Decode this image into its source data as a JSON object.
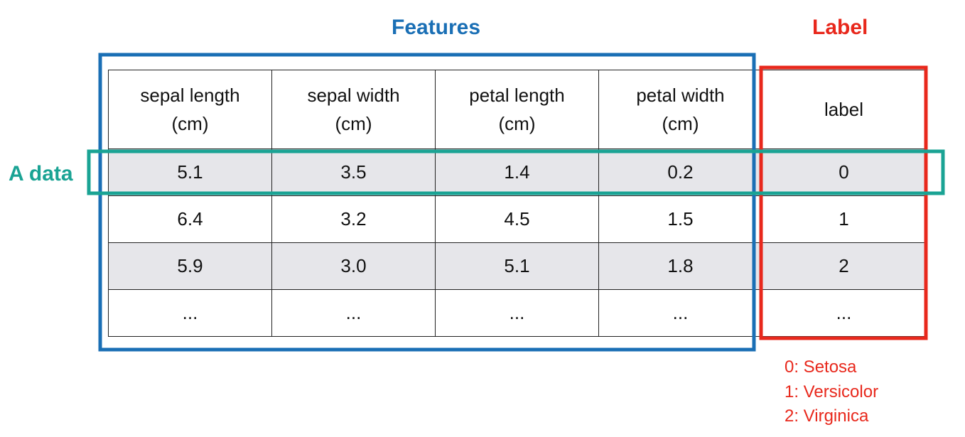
{
  "annotations": {
    "features": "Features",
    "label": "Label",
    "a_data": "A data"
  },
  "table": {
    "header": [
      [
        "sepal length",
        "(cm)"
      ],
      [
        "sepal width",
        "(cm)"
      ],
      [
        "petal length",
        "(cm)"
      ],
      [
        "petal width",
        "(cm)"
      ],
      [
        "label"
      ]
    ],
    "rows": [
      [
        "5.1",
        "3.5",
        "1.4",
        "0.2",
        "0"
      ],
      [
        "6.4",
        "3.2",
        "4.5",
        "1.5",
        "1"
      ],
      [
        "5.9",
        "3.0",
        "5.1",
        "1.8",
        "2"
      ],
      [
        "...",
        "...",
        "...",
        "...",
        "..."
      ]
    ]
  },
  "legend": [
    "0: Setosa",
    "1: Versicolor",
    "2: Virginica"
  ]
}
